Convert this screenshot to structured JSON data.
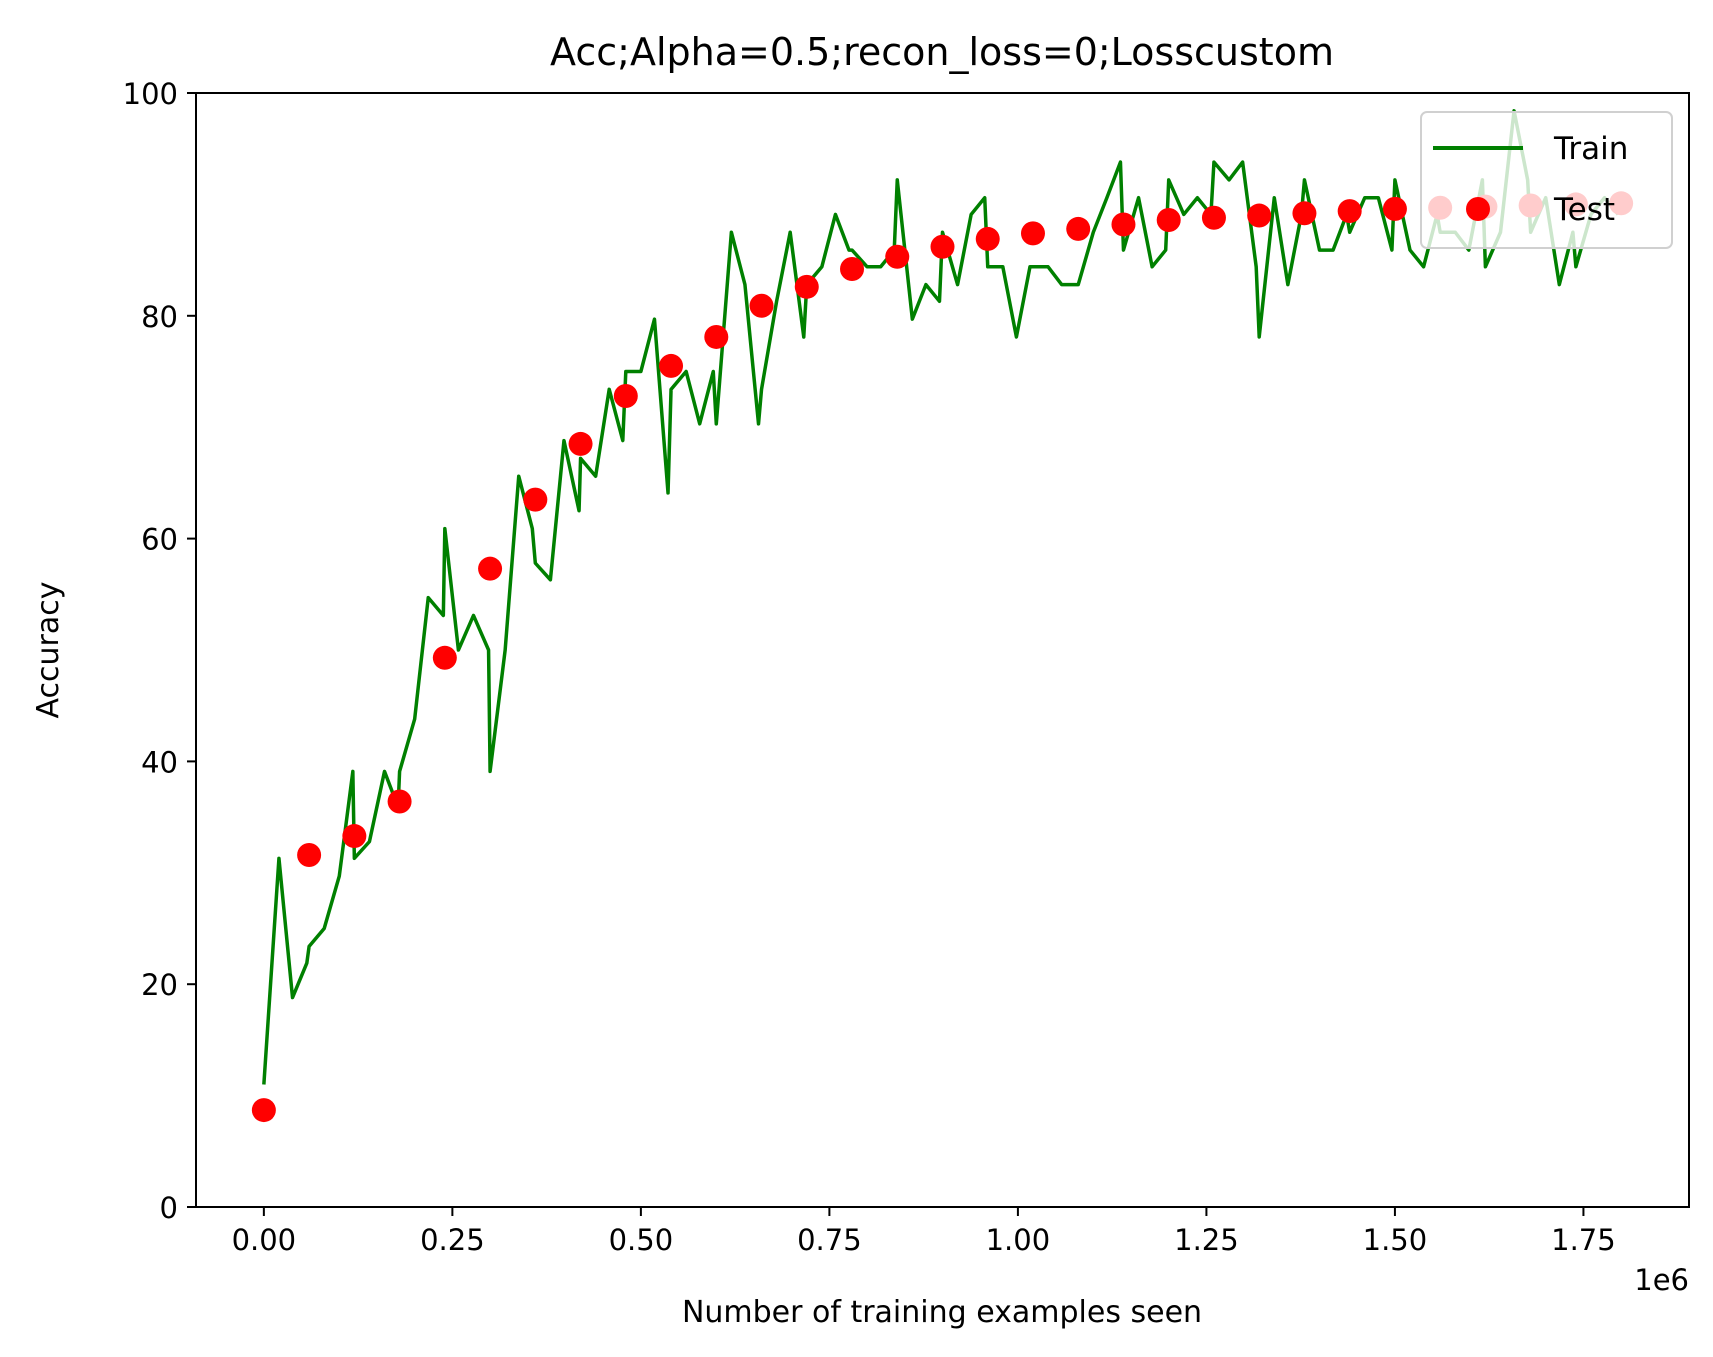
{
  "chart_data": {
    "type": "line",
    "title": "Acc;Alpha=0.5;recon_loss=0;Losscustom",
    "xlabel": "Number of training examples seen",
    "ylabel": "Accuracy",
    "x_offset_label": "1e6",
    "xlim": [
      -90000,
      1890000
    ],
    "ylim": [
      0,
      100
    ],
    "x_ticks": [
      0,
      250000,
      500000,
      750000,
      1000000,
      1250000,
      1500000,
      1750000
    ],
    "x_tick_labels": [
      "0.00",
      "0.25",
      "0.50",
      "0.75",
      "1.00",
      "1.25",
      "1.50",
      "1.75"
    ],
    "y_ticks": [
      0,
      20,
      40,
      60,
      80,
      100
    ],
    "y_tick_labels": [
      "0",
      "20",
      "40",
      "60",
      "80",
      "100"
    ],
    "grid": false,
    "legend": {
      "placement": "upper-right",
      "entries": [
        "Train",
        "Test"
      ]
    },
    "colors": {
      "train": "#008000",
      "test": "#ff0000"
    },
    "series": [
      {
        "name": "Train",
        "style": "line",
        "x": [
          0,
          20000,
          38000,
          57000,
          60000,
          80000,
          100000,
          118000,
          120000,
          140000,
          160000,
          178000,
          180000,
          200000,
          218000,
          238000,
          240000,
          258000,
          278000,
          298000,
          300000,
          320000,
          338000,
          356000,
          360000,
          380000,
          398000,
          418000,
          420000,
          440000,
          458000,
          476000,
          480000,
          500000,
          518000,
          536000,
          540000,
          560000,
          578000,
          596000,
          600000,
          620000,
          638000,
          656000,
          660000,
          680000,
          698000,
          716000,
          720000,
          740000,
          758000,
          776000,
          780000,
          800000,
          818000,
          836000,
          840000,
          860000,
          878000,
          896000,
          900000,
          920000,
          938000,
          956000,
          960000,
          980000,
          998000,
          1016000,
          1020000,
          1040000,
          1058000,
          1076000,
          1080000,
          1100000,
          1118000,
          1136000,
          1140000,
          1160000,
          1178000,
          1196000,
          1200000,
          1220000,
          1238000,
          1256000,
          1260000,
          1280000,
          1298000,
          1316000,
          1320000,
          1340000,
          1358000,
          1376000,
          1380000,
          1400000,
          1418000,
          1436000,
          1440000,
          1460000,
          1478000,
          1496000,
          1500000,
          1520000,
          1538000,
          1556000,
          1560000,
          1580000,
          1598000,
          1616000,
          1620000,
          1640000,
          1658000,
          1676000,
          1680000,
          1700000,
          1718000,
          1736000,
          1740000,
          1760000,
          1778000,
          1796000
        ],
        "y": [
          11,
          31.3,
          18.8,
          21.9,
          23.4,
          25,
          29.7,
          39.1,
          31.3,
          32.8,
          39.1,
          35.9,
          39.1,
          43.8,
          54.7,
          53.1,
          60.9,
          50,
          53.1,
          50,
          39.1,
          50,
          65.6,
          60.9,
          57.8,
          56.3,
          68.8,
          62.5,
          67.2,
          65.6,
          73.4,
          68.8,
          75,
          75,
          79.7,
          64.1,
          73.4,
          75,
          70.3,
          75,
          70.3,
          87.5,
          82.8,
          70.3,
          73.4,
          81.3,
          87.5,
          78.1,
          82.8,
          84.4,
          89.1,
          85.9,
          85.9,
          84.4,
          84.4,
          85.9,
          92.2,
          79.7,
          82.8,
          81.3,
          87.5,
          82.8,
          89.1,
          90.6,
          84.4,
          84.4,
          78.1,
          84.4,
          84.4,
          84.4,
          82.8,
          82.8,
          82.8,
          87.5,
          90.6,
          93.8,
          85.9,
          90.6,
          84.4,
          85.9,
          92.2,
          89.1,
          90.6,
          89.1,
          93.8,
          92.2,
          93.8,
          84.4,
          78.1,
          90.6,
          82.8,
          89.1,
          92.2,
          85.9,
          85.9,
          89.1,
          87.5,
          90.6,
          90.6,
          85.9,
          92.2,
          85.9,
          84.4,
          89.1,
          87.5,
          87.5,
          85.9,
          92.2,
          84.4,
          87.5,
          98.4,
          92.2,
          87.5,
          90.6,
          82.8,
          87.5,
          84.4,
          89.1,
          90.6,
          89.1
        ]
      },
      {
        "name": "Test",
        "style": "scatter",
        "x": [
          0,
          60000,
          120000,
          180000,
          240000,
          300000,
          360000,
          420000,
          480000,
          540000,
          600000,
          660000,
          720000,
          780000,
          840000,
          900000,
          960000,
          1020000,
          1080000,
          1140000,
          1200000,
          1260000,
          1320000,
          1380000,
          1440000,
          1500000,
          1560000,
          1620000,
          1680000,
          1740000,
          1800000
        ],
        "y": [
          8.7,
          31.6,
          33.3,
          36.4,
          49.3,
          57.3,
          63.5,
          68.5,
          72.8,
          75.5,
          78.1,
          80.9,
          82.6,
          84.2,
          85.3,
          86.2,
          86.9,
          87.4,
          87.8,
          88.2,
          88.6,
          88.8,
          89,
          89.2,
          89.4,
          89.6,
          89.7,
          89.8,
          89.9,
          90,
          90.1
        ]
      }
    ]
  }
}
